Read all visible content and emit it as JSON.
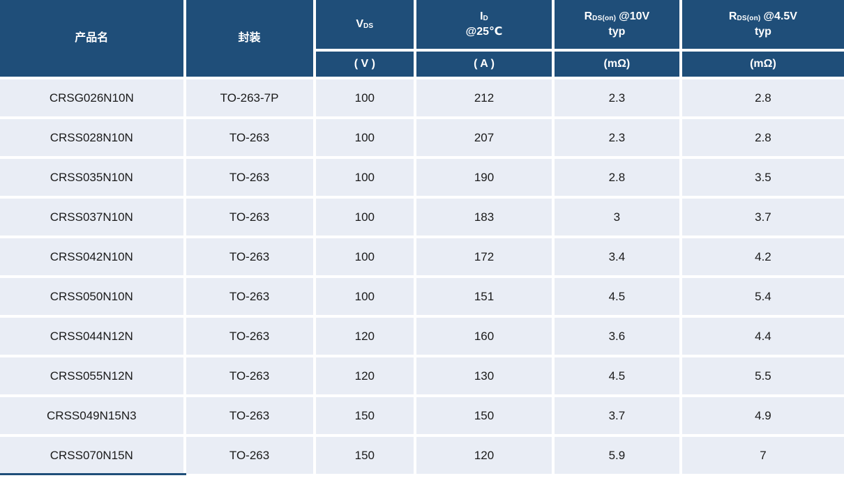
{
  "colors": {
    "header_bg": "#1F4E79",
    "header_text": "#FFFFFF",
    "row_bg": "#E9EDF5",
    "grid_lines": "#FFFFFF",
    "body_text": "#1A1A1A"
  },
  "table": {
    "columns": [
      {
        "key": "product",
        "label": "产品名"
      },
      {
        "key": "package",
        "label": "封装"
      },
      {
        "key": "vds",
        "label_main": "V",
        "label_sub": "DS",
        "unit": "( V )"
      },
      {
        "key": "id",
        "label_main": "I",
        "label_sub": "D",
        "label_line2": "@25℃",
        "unit": "( A )"
      },
      {
        "key": "rds10",
        "label_main": "R",
        "label_sub": "DS(on)",
        "label_rest": "@10V",
        "label_line2": "typ",
        "unit": "(mΩ)"
      },
      {
        "key": "rds45",
        "label_main": "R",
        "label_sub": "DS(on)",
        "label_rest": "@4.5V",
        "label_line2": "typ",
        "unit": "(mΩ)"
      }
    ],
    "rows": [
      {
        "product": "CRSG026N10N",
        "package": "TO-263-7P",
        "vds": "100",
        "id": "212",
        "rds10": "2.3",
        "rds45": "2.8"
      },
      {
        "product": "CRSS028N10N",
        "package": "TO-263",
        "vds": "100",
        "id": "207",
        "rds10": "2.3",
        "rds45": "2.8"
      },
      {
        "product": "CRSS035N10N",
        "package": "TO-263",
        "vds": "100",
        "id": "190",
        "rds10": "2.8",
        "rds45": "3.5"
      },
      {
        "product": "CRSS037N10N",
        "package": "TO-263",
        "vds": "100",
        "id": "183",
        "rds10": "3",
        "rds45": "3.7"
      },
      {
        "product": "CRSS042N10N",
        "package": "TO-263",
        "vds": "100",
        "id": "172",
        "rds10": "3.4",
        "rds45": "4.2"
      },
      {
        "product": "CRSS050N10N",
        "package": "TO-263",
        "vds": "100",
        "id": "151",
        "rds10": "4.5",
        "rds45": "5.4"
      },
      {
        "product": "CRSS044N12N",
        "package": "TO-263",
        "vds": "120",
        "id": "160",
        "rds10": "3.6",
        "rds45": "4.4"
      },
      {
        "product": "CRSS055N12N",
        "package": "TO-263",
        "vds": "120",
        "id": "130",
        "rds10": "4.5",
        "rds45": "5.5"
      },
      {
        "product": "CRSS049N15N3",
        "package": "TO-263",
        "vds": "150",
        "id": "150",
        "rds10": "3.7",
        "rds45": "4.9"
      },
      {
        "product": "CRSS070N15N",
        "package": "TO-263",
        "vds": "150",
        "id": "120",
        "rds10": "5.9",
        "rds45": "7"
      }
    ]
  }
}
